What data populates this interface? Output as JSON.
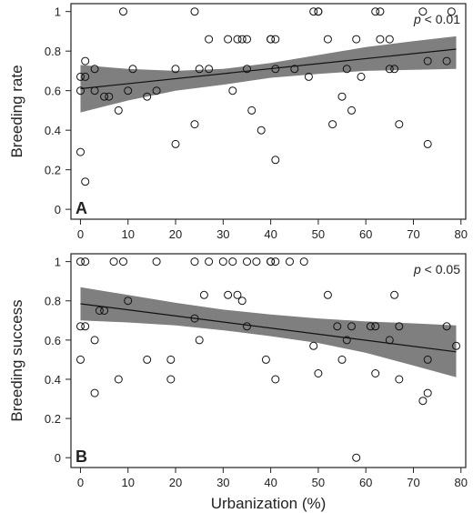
{
  "chart_data": [
    {
      "type": "scatter",
      "panel": "A",
      "ylabel": "Breeding rate",
      "xlabel": "",
      "annotation": "p < 0.01",
      "annotation_prefix": "p",
      "annotation_suffix": " < 0.01",
      "xlim": [
        -2,
        81
      ],
      "ylim": [
        -0.05,
        1.04
      ],
      "xticks": [
        0,
        10,
        20,
        30,
        40,
        50,
        60,
        70,
        80
      ],
      "yticks": [
        0,
        0.2,
        0.4,
        0.6,
        0.8,
        1
      ],
      "yticklabels": [
        "0",
        "0.2",
        "0.4",
        "0.6",
        "0.8",
        "1"
      ],
      "grid": false,
      "fit": {
        "x": [
          0,
          79
        ],
        "y": [
          0.61,
          0.81
        ]
      },
      "ci_band": {
        "x": [
          0,
          10,
          20,
          30,
          40,
          50,
          60,
          70,
          79
        ],
        "lower": [
          0.49,
          0.55,
          0.6,
          0.63,
          0.665,
          0.685,
          0.7,
          0.705,
          0.71
        ],
        "upper": [
          0.73,
          0.71,
          0.7,
          0.71,
          0.74,
          0.78,
          0.82,
          0.85,
          0.875
        ]
      },
      "points": [
        [
          0,
          0.67
        ],
        [
          0,
          0.6
        ],
        [
          0,
          0.29
        ],
        [
          1,
          0.75
        ],
        [
          1,
          0.14
        ],
        [
          1,
          0.67
        ],
        [
          3,
          0.71
        ],
        [
          3,
          0.6
        ],
        [
          5,
          0.57
        ],
        [
          6,
          0.57
        ],
        [
          8,
          0.5
        ],
        [
          9,
          1
        ],
        [
          10,
          0.6
        ],
        [
          11,
          0.71
        ],
        [
          14,
          0.57
        ],
        [
          16,
          0.6
        ],
        [
          20,
          0.71
        ],
        [
          20,
          0.33
        ],
        [
          24,
          1
        ],
        [
          24,
          0.43
        ],
        [
          25,
          0.71
        ],
        [
          27,
          0.86
        ],
        [
          27,
          0.71
        ],
        [
          31,
          0.86
        ],
        [
          32,
          0.6
        ],
        [
          33,
          0.86
        ],
        [
          34,
          0.86
        ],
        [
          35,
          0.71
        ],
        [
          35,
          0.86
        ],
        [
          36,
          0.5
        ],
        [
          38,
          0.4
        ],
        [
          40,
          0.86
        ],
        [
          40,
          0.86
        ],
        [
          41,
          0.86
        ],
        [
          41,
          0.25
        ],
        [
          41,
          0.71
        ],
        [
          45,
          0.71
        ],
        [
          48,
          0.67
        ],
        [
          49,
          1
        ],
        [
          50,
          1
        ],
        [
          50,
          1
        ],
        [
          52,
          0.86
        ],
        [
          53,
          0.43
        ],
        [
          55,
          0.57
        ],
        [
          56,
          0.71
        ],
        [
          57,
          0.5
        ],
        [
          58,
          0.86
        ],
        [
          59,
          0.67
        ],
        [
          62,
          1
        ],
        [
          63,
          1
        ],
        [
          63,
          0.86
        ],
        [
          65,
          0.86
        ],
        [
          65,
          0.71
        ],
        [
          66,
          0.71
        ],
        [
          67,
          0.43
        ],
        [
          72,
          1
        ],
        [
          73,
          0.75
        ],
        [
          73,
          0.33
        ],
        [
          77,
          0.75
        ],
        [
          78,
          1
        ]
      ]
    },
    {
      "type": "scatter",
      "panel": "B",
      "ylabel": "Breeding success",
      "xlabel": "Urbanization (%)",
      "annotation": "p < 0.05",
      "annotation_prefix": "p",
      "annotation_suffix": " < 0.05",
      "xlim": [
        -2,
        81
      ],
      "ylim": [
        -0.05,
        1.04
      ],
      "xticks": [
        0,
        10,
        20,
        30,
        40,
        50,
        60,
        70,
        80
      ],
      "yticks": [
        0,
        0.2,
        0.4,
        0.6,
        0.8,
        1
      ],
      "yticklabels": [
        "0",
        "0.2",
        "0.4",
        "0.6",
        "0.8",
        "1"
      ],
      "grid": false,
      "fit": {
        "x": [
          0,
          79
        ],
        "y": [
          0.785,
          0.54
        ]
      },
      "ci_band": {
        "x": [
          0,
          10,
          20,
          30,
          40,
          50,
          60,
          70,
          79
        ],
        "lower": [
          0.7,
          0.69,
          0.675,
          0.65,
          0.62,
          0.585,
          0.535,
          0.47,
          0.41
        ],
        "upper": [
          0.87,
          0.83,
          0.79,
          0.755,
          0.73,
          0.71,
          0.695,
          0.685,
          0.675
        ]
      },
      "points": [
        [
          0,
          1
        ],
        [
          0,
          0.67
        ],
        [
          0,
          0.5
        ],
        [
          1,
          1
        ],
        [
          1,
          0.67
        ],
        [
          3,
          0.6
        ],
        [
          3,
          0.33
        ],
        [
          4,
          0.75
        ],
        [
          5,
          0.75
        ],
        [
          7,
          1
        ],
        [
          8,
          0.4
        ],
        [
          9,
          1
        ],
        [
          10,
          0.8
        ],
        [
          14,
          0.5
        ],
        [
          16,
          1
        ],
        [
          19,
          0.4
        ],
        [
          19,
          0.5
        ],
        [
          24,
          1
        ],
        [
          24,
          0.71
        ],
        [
          25,
          0.6
        ],
        [
          26,
          0.83
        ],
        [
          27,
          1
        ],
        [
          30,
          1
        ],
        [
          31,
          0.83
        ],
        [
          32,
          1
        ],
        [
          33,
          0.83
        ],
        [
          34,
          0.8
        ],
        [
          35,
          0.67
        ],
        [
          35,
          1
        ],
        [
          37,
          1
        ],
        [
          39,
          0.5
        ],
        [
          40,
          1
        ],
        [
          40,
          1
        ],
        [
          41,
          1
        ],
        [
          41,
          0.4
        ],
        [
          44,
          1
        ],
        [
          47,
          1
        ],
        [
          49,
          0.57
        ],
        [
          50,
          0.43
        ],
        [
          52,
          0.83
        ],
        [
          54,
          0.67
        ],
        [
          55,
          0.5
        ],
        [
          56,
          0.6
        ],
        [
          57,
          0.67
        ],
        [
          58,
          0
        ],
        [
          61,
          0.67
        ],
        [
          62,
          0.67
        ],
        [
          62,
          0.43
        ],
        [
          65,
          0.6
        ],
        [
          66,
          0.83
        ],
        [
          67,
          0.67
        ],
        [
          67,
          0.4
        ],
        [
          72,
          0.29
        ],
        [
          73,
          0.33
        ],
        [
          73,
          0.5
        ],
        [
          77,
          0.67
        ],
        [
          79,
          0.57
        ]
      ]
    }
  ]
}
